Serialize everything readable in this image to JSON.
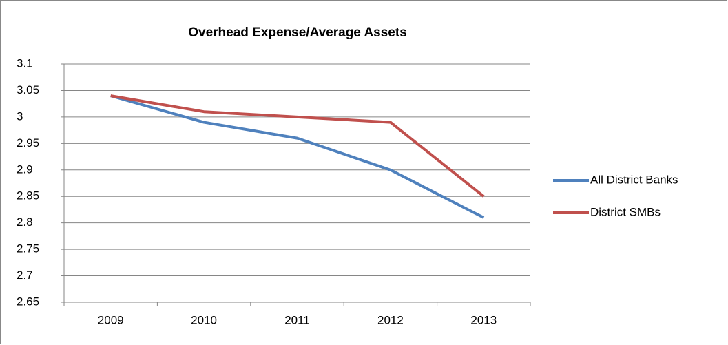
{
  "chart_data": {
    "type": "line",
    "title": "Overhead Expense/Average Assets",
    "categories": [
      "2009",
      "2010",
      "2011",
      "2012",
      "2013"
    ],
    "series": [
      {
        "name": "All District Banks",
        "color": "#4f81bd",
        "values": [
          3.04,
          2.99,
          2.96,
          2.9,
          2.81
        ]
      },
      {
        "name": "District SMBs",
        "color": "#c0504d",
        "values": [
          3.04,
          3.01,
          3.0,
          2.99,
          2.85
        ]
      }
    ],
    "ylim": [
      2.65,
      3.1
    ],
    "yticks": [
      2.65,
      2.7,
      2.75,
      2.8,
      2.85,
      2.9,
      2.95,
      3,
      3.05,
      3.1
    ],
    "grid": true,
    "legend": "right"
  }
}
